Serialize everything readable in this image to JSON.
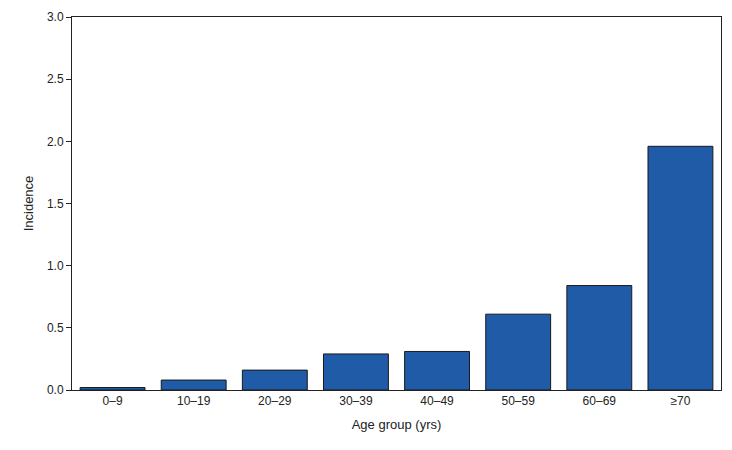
{
  "chart_data": {
    "type": "bar",
    "x_label": "Age group (yrs)",
    "y_label": "Incidence",
    "categories": [
      "0–9",
      "10–19",
      "20–29",
      "30–39",
      "40–49",
      "50–59",
      "60–69",
      "≥70"
    ],
    "values": [
      0.02,
      0.08,
      0.16,
      0.29,
      0.31,
      0.61,
      0.84,
      1.96
    ],
    "color": "#1f5ba6",
    "ylim": [
      0,
      3
    ],
    "yticks": [
      {
        "value": 0,
        "label": "0.0"
      },
      0.5,
      {
        "value": 1,
        "label": "1.0"
      },
      1.5,
      {
        "value": 2,
        "label": "2.0"
      },
      2.5,
      {
        "value": 3,
        "label": "3.0"
      }
    ],
    "grid": false
  }
}
